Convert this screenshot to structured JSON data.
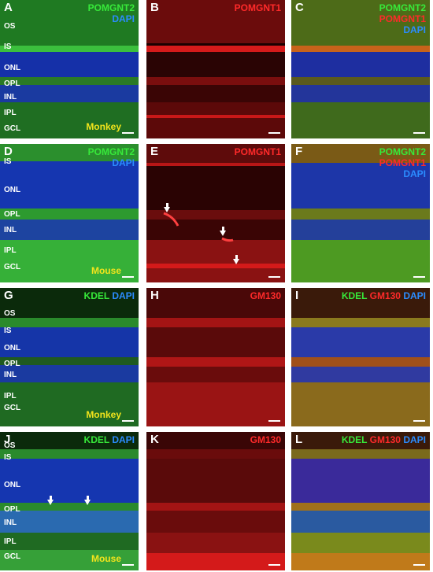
{
  "colors": {
    "green": "#37e93a",
    "red": "#ff2a2a",
    "blue": "#2b8cff",
    "yellow": "#f2e41c"
  },
  "panels": {
    "A": {
      "letter": "A",
      "l1": "POMGNT2",
      "l2": "DAPI",
      "layers": [
        "OS",
        "IS",
        "ONL",
        "OPL",
        "INL",
        "IPL",
        "GCL"
      ],
      "species": "Monkey"
    },
    "B": {
      "letter": "B",
      "l1": "POMGNT1"
    },
    "C": {
      "letter": "C",
      "l1": "POMGNT2",
      "l2": "POMGNT1",
      "l3": "DAPI"
    },
    "D": {
      "letter": "D",
      "l1": "POMGNT2",
      "l2": "DAPI",
      "layers": [
        "IS",
        "ONL",
        "OPL",
        "INL",
        "IPL",
        "GCL"
      ],
      "species": "Mouse"
    },
    "E": {
      "letter": "E",
      "l1": "POMGNT1"
    },
    "F": {
      "letter": "F",
      "l1": "POMGNT2",
      "l2": "POMGNT1",
      "l3": "DAPI"
    },
    "G": {
      "letter": "G",
      "l1": "KDEL",
      "l2": "DAPI",
      "layers": [
        "OS",
        "IS",
        "ONL",
        "OPL",
        "INL",
        "IPL",
        "GCL"
      ],
      "species": "Monkey"
    },
    "H": {
      "letter": "H",
      "l1": "GM130"
    },
    "I": {
      "letter": "I",
      "l1": "KDEL",
      "l2": "GM130",
      "l3": "DAPI"
    },
    "J": {
      "letter": "J",
      "l1": "KDEL",
      "l2": "DAPI",
      "layers": [
        "OS",
        "IS",
        "ONL",
        "OPL",
        "INL",
        "IPL",
        "GCL"
      ],
      "species": "Mouse"
    },
    "K": {
      "letter": "K",
      "l1": "GM130"
    },
    "L": {
      "letter": "L",
      "l1": "KDEL",
      "l2": "GM130",
      "l3": "DAPI"
    }
  }
}
